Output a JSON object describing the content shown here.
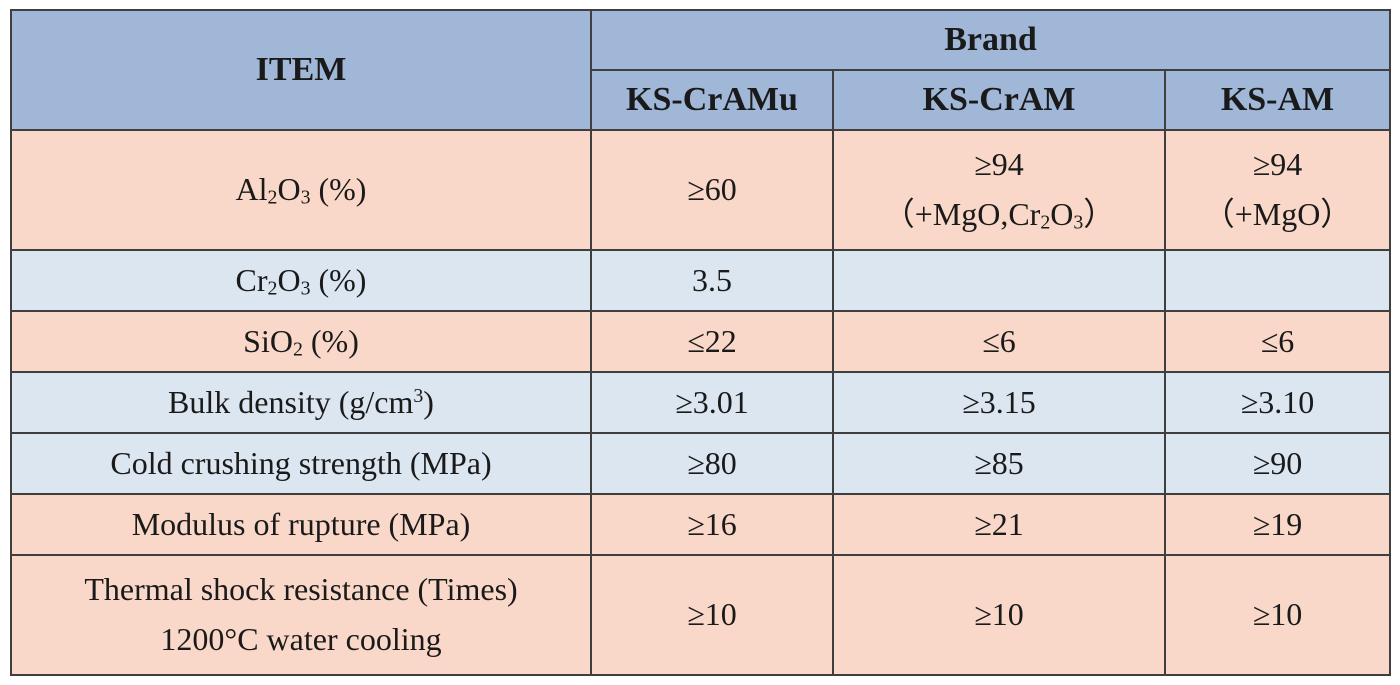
{
  "header": {
    "item_label": "ITEM",
    "brand_label": "Brand",
    "brands": [
      "KS-CrAMu",
      "KS-CrAM",
      "KS-AM"
    ]
  },
  "rows": [
    {
      "item": {
        "pre": "Al",
        "sub1": "2",
        "mid": "O",
        "sub2": "3",
        "post": " (%)"
      },
      "values": [
        {
          "line1": "≥60"
        },
        {
          "line1": "≥94",
          "l2_pre": "（+MgO,Cr",
          "l2_sub1": "2",
          "l2_mid": "O",
          "l2_sub2": "3",
          "l2_post": "）"
        },
        {
          "line1": "≥94",
          "line2": "（+MgO）"
        }
      ]
    },
    {
      "item": {
        "pre": "Cr",
        "sub1": "2",
        "mid": "O",
        "sub2": "3",
        "post": " (%)"
      },
      "values": [
        "3.5",
        "",
        ""
      ]
    },
    {
      "item": {
        "pre": "SiO",
        "sub1": "2",
        "post": " (%)"
      },
      "values": [
        "≤22",
        "≤6",
        "≤6"
      ]
    },
    {
      "item": {
        "pre": "Bulk density (g/cm",
        "sup": "3",
        "post": ")"
      },
      "values": [
        "≥3.01",
        "≥3.15",
        "≥3.10"
      ]
    },
    {
      "item": {
        "pre": "Cold crushing strength (MPa)"
      },
      "values": [
        "≥80",
        "≥85",
        "≥90"
      ]
    },
    {
      "item": {
        "pre": "Modulus of rupture (MPa)"
      },
      "values": [
        "≥16",
        "≥21",
        "≥19"
      ]
    },
    {
      "item": {
        "line1": "Thermal shock resistance (Times)",
        "line2": "1200°C water cooling"
      },
      "values": [
        "≥10",
        "≥10",
        "≥10"
      ]
    }
  ]
}
